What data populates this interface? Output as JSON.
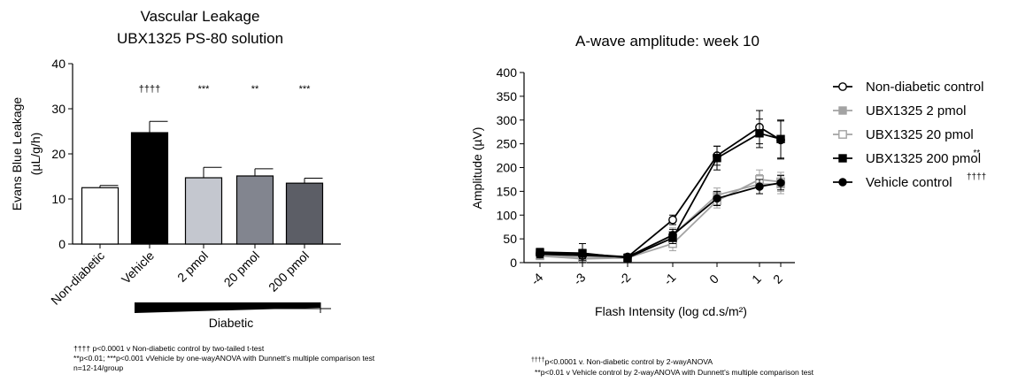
{
  "chart_data": [
    {
      "type": "bar",
      "title_line1": "Vascular Leakage",
      "title_line2": "UBX1325 PS-80 solution",
      "ylabel_line1": "Evans Blue Leakage",
      "ylabel_line2": "(µL/g/h)",
      "ylim": [
        0,
        40
      ],
      "yticks": [
        "0",
        "10",
        "20",
        "30",
        "40"
      ],
      "categories": [
        "Non-diabetic",
        "Vehicle",
        "2 pmol",
        "20 pmol",
        "200 pmol"
      ],
      "values": [
        12.5,
        24.7,
        14.7,
        15.1,
        13.5
      ],
      "errors": [
        0.5,
        2.5,
        2.3,
        1.6,
        1.1
      ],
      "significance": [
        "",
        "††††",
        "***",
        "**",
        "***"
      ],
      "colors": [
        "#ffffff",
        "#000000",
        "#c4c7cf",
        "#82858f",
        "#5c5e66"
      ],
      "group_label": "Diabetic",
      "footnotes": [
        "†††† p<0.0001 v Non-diabetic control by two-tailed t-test",
        "**p<0.01; ***p<0.001 vVehicle by one-wayANOVA with Dunnett's multiple comparison test",
        "n=12-14/group"
      ]
    },
    {
      "type": "line",
      "title": "A-wave amplitude: week 10",
      "xlabel": "Flash Intensity (log cd.s/m²)",
      "ylabel": "Amplitude (µV)",
      "x": [
        -4,
        -3,
        -2,
        -1,
        0,
        1,
        2
      ],
      "xticks": [
        "-4",
        "-3",
        "-2",
        "-1",
        "0",
        "1",
        "2"
      ],
      "ylim": [
        0,
        400
      ],
      "yticks": [
        "0",
        "50",
        "100",
        "150",
        "200",
        "250",
        "300",
        "350",
        "400"
      ],
      "series": [
        {
          "name": "Non-diabetic control",
          "sup": "",
          "color": "#000000",
          "marker": "open-circle",
          "values": [
            18,
            15,
            12,
            90,
            225,
            285,
            258
          ],
          "errors": [
            8,
            10,
            6,
            10,
            20,
            35,
            40
          ]
        },
        {
          "name": "UBX1325 2 pmol",
          "sup": "",
          "color": "#a3a3a3",
          "marker": "filled-square",
          "values": [
            14,
            8,
            10,
            58,
            142,
            165,
            165
          ],
          "errors": [
            6,
            6,
            5,
            15,
            15,
            20,
            20
          ]
        },
        {
          "name": "UBX1325 20 pmol",
          "sup": "",
          "color": "#a3a3a3",
          "marker": "open-square",
          "values": [
            16,
            10,
            10,
            40,
            130,
            175,
            170
          ],
          "errors": [
            6,
            8,
            5,
            15,
            15,
            20,
            20
          ]
        },
        {
          "name": "UBX1325 200 pmol",
          "sup": "**",
          "color": "#000000",
          "marker": "filled-square",
          "values": [
            22,
            20,
            10,
            52,
            220,
            272,
            260
          ],
          "errors": [
            8,
            20,
            8,
            12,
            25,
            30,
            40
          ]
        },
        {
          "name": "Vehicle control",
          "sup": "††††",
          "color": "#000000",
          "marker": "filled-circle",
          "values": [
            20,
            18,
            12,
            58,
            135,
            160,
            168
          ],
          "errors": [
            8,
            10,
            6,
            12,
            15,
            15,
            15
          ]
        }
      ],
      "footnote1_sup": "††††",
      "footnote1_text": "p<0.0001 v. Non-diabetic control by 2-wayANOVA",
      "footnote2": "**p<0.01 v Vehicle control by 2-wayANOVA with Dunnett's multiple comparison test"
    }
  ]
}
